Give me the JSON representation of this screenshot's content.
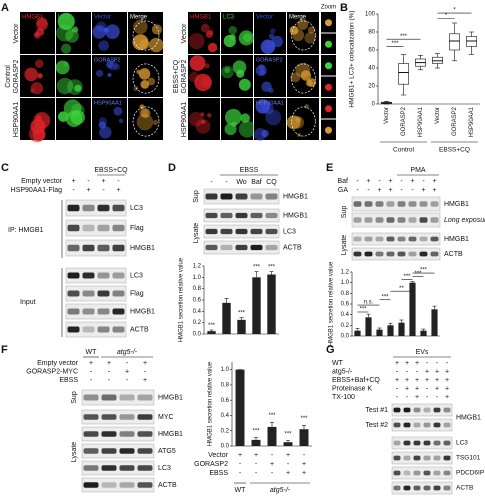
{
  "panel_a": {
    "label": "A",
    "control": {
      "group": "Control",
      "row_labels": [
        "Vector",
        "GORASP2",
        "HSP90AA1"
      ],
      "columns": [
        "HMGB1",
        "LC3",
        "Vector",
        "Merge"
      ],
      "channels": [
        "GORASP2",
        "HSP90AA1"
      ]
    },
    "ebss": {
      "group": "EBSS+CQ",
      "row_labels": [
        "Vector",
        "GORASP2",
        "HSP90AA1"
      ],
      "columns": [
        "HMGB1",
        "LC3",
        "Vector",
        "Merge"
      ],
      "channels": [
        "GORASP2",
        "HSP90AA1"
      ],
      "zoom": "Zoom"
    }
  },
  "panel_b": {
    "label": "B",
    "chart_data": {
      "type": "box",
      "y_label": "HMGB1+ LC3+ colocalization (%)",
      "ylim": [
        0,
        100
      ],
      "yticks": [
        0,
        20,
        40,
        60,
        80,
        100
      ],
      "categories": [
        "Vector",
        "GORASP2",
        "HSP90AA1",
        "Vector",
        "GORASP2",
        "HSP90AA1"
      ],
      "groups": [
        "Control",
        "EBSS+CQ"
      ],
      "boxes": [
        {
          "min": 0,
          "q1": 0.5,
          "median": 1,
          "q3": 2,
          "max": 3
        },
        {
          "min": 10,
          "q1": 22,
          "median": 35,
          "q3": 45,
          "max": 55
        },
        {
          "min": 38,
          "q1": 42,
          "median": 46,
          "q3": 50,
          "max": 54
        },
        {
          "min": 40,
          "q1": 45,
          "median": 48,
          "q3": 52,
          "max": 56
        },
        {
          "min": 48,
          "q1": 60,
          "median": 70,
          "q3": 78,
          "max": 90
        },
        {
          "min": 55,
          "q1": 64,
          "median": 70,
          "q3": 75,
          "max": 80
        }
      ],
      "color": "#ffffff",
      "annotations": [
        "***",
        "***",
        "*",
        "*"
      ]
    }
  },
  "panel_c": {
    "label": "C",
    "treatment": "EBSS+CQ",
    "conditions": [
      {
        "label": "Empty vector",
        "signs": [
          "+",
          "-",
          "+",
          "-"
        ]
      },
      {
        "label": "HSP90AA1-Flag",
        "signs": [
          "-",
          "+",
          "-",
          "+"
        ]
      }
    ],
    "ip": "IP: HMGB1",
    "ip_blots": [
      "LC3",
      "Flag",
      "HMGB1"
    ],
    "input": "Input",
    "input_blots": [
      "LC3",
      "Flag",
      "HMGB1",
      "ACTB"
    ]
  },
  "panel_d": {
    "label": "D",
    "treatment": "EBSS",
    "lanes": [
      "-",
      "-",
      "Wo",
      "Baf",
      "CQ"
    ],
    "sup": "Sup",
    "sup_blots": [
      "HMGB1"
    ],
    "lysate": "Lysate",
    "lysate_blots": [
      "HMGB1",
      "LC3",
      "ACTB"
    ],
    "chart_data": {
      "type": "bar",
      "y_label": "HMGB1 secretion relative value",
      "values": [
        0.05,
        0.55,
        0.25,
        1.0,
        1.05
      ],
      "errors": [
        0.02,
        0.08,
        0.04,
        0.1,
        0.05
      ],
      "color": "#222222",
      "ylim": [
        0,
        1.2
      ],
      "yticks": [
        {
          "value": 0,
          "label": "0.0"
        },
        {
          "value": 0.2,
          "label": "0.2"
        },
        {
          "value": 0.4,
          "label": "0.4"
        },
        {
          "value": 0.6,
          "label": "0.6"
        },
        {
          "value": 0.8,
          "label": "0.8"
        },
        {
          "value": 1.0,
          "label": "1.0"
        },
        {
          "value": 1.2,
          "label": "1.2"
        }
      ],
      "annotations": [
        "***",
        "***",
        "***",
        "***"
      ]
    }
  },
  "panel_e": {
    "label": "E",
    "treatment": "PMA",
    "conditions": [
      {
        "label": "Baf",
        "signs": [
          "-",
          "+",
          "-",
          "+",
          "-",
          "+",
          "-",
          "+"
        ]
      },
      {
        "label": "GA",
        "signs": [
          "-",
          "-",
          "+",
          "+",
          "-",
          "-",
          "+",
          "+"
        ]
      }
    ],
    "sup": "Sup",
    "sup_blots": [
      "HMGB1",
      "Long exposure"
    ],
    "lysate": "Lysate",
    "lysate_blots": [
      "HMGB1",
      "ACTB"
    ],
    "chart_data": {
      "type": "bar",
      "y_label": "HMGB1 secretion relative value",
      "values": [
        0.1,
        0.35,
        0.12,
        0.2,
        0.25,
        1.0,
        0.1,
        0.5
      ],
      "errors": [
        0.04,
        0.06,
        0.03,
        0.04,
        0.05,
        0.02,
        0.03,
        0.06
      ],
      "color": "#222222",
      "ylim": [
        0,
        1.2
      ],
      "yticks": [
        {
          "value": 0,
          "label": "0.0"
        },
        {
          "value": 0.2,
          "label": "0.2"
        },
        {
          "value": 0.4,
          "label": "0.4"
        },
        {
          "value": 0.6,
          "label": "0.6"
        },
        {
          "value": 0.8,
          "label": "0.8"
        },
        {
          "value": 1.0,
          "label": "1.0"
        },
        {
          "value": 1.2,
          "label": "1.2"
        }
      ],
      "annotations": [
        "***",
        "n.s.",
        "***",
        "**",
        "***",
        "***",
        "***"
      ]
    }
  },
  "panel_f": {
    "label": "F",
    "genotypes": [
      "WT",
      "atg5-/-"
    ],
    "conditions": [
      {
        "label": "Empty vector",
        "signs": [
          "+",
          "+",
          "-",
          "+"
        ]
      },
      {
        "label": "GORASP2-MYC",
        "signs": [
          "-",
          "-",
          "+",
          "-"
        ]
      },
      {
        "label": "EBSS",
        "signs": [
          "-",
          "-",
          "-",
          "+"
        ]
      }
    ],
    "sup": "Sup",
    "sup_blots": [
      "HMGB1"
    ],
    "lysate": "Lysate",
    "lysate_blots": [
      "MYC",
      "HMGB1",
      "ATG5",
      "LC3",
      "ACTB"
    ],
    "chart_data": {
      "type": "bar",
      "y_label": "HMGB1 secretion relative value",
      "values": [
        1.0,
        0.08,
        0.25,
        0.05,
        0.22
      ],
      "errors": [
        0,
        0.03,
        0.06,
        0.02,
        0.05
      ],
      "color": "#222222",
      "ylim": [
        0,
        1.1
      ],
      "yticks": [
        {
          "value": 0,
          "label": "0.0"
        },
        {
          "value": 0.2,
          "label": "0.2"
        },
        {
          "value": 0.4,
          "label": "0.4"
        },
        {
          "value": 0.6,
          "label": "0.6"
        },
        {
          "value": 0.8,
          "label": "0.8"
        },
        {
          "value": 1.0,
          "label": "1.0"
        }
      ],
      "annotations": [
        "***",
        "***",
        "***",
        "***"
      ],
      "table": [
        {
          "label": "Vector",
          "signs": [
            "+",
            "+",
            "-",
            "+",
            "-"
          ]
        },
        {
          "label": "GORASP2",
          "signs": [
            "-",
            "-",
            "+",
            "-",
            "+"
          ]
        },
        {
          "label": "EBSS",
          "signs": [
            "-",
            "-",
            "-",
            "+",
            "+"
          ]
        }
      ],
      "groups": [
        "WT",
        "atg5-/-"
      ]
    }
  },
  "panel_g": {
    "label": "G",
    "header": "EVs",
    "conditions": [
      {
        "label": "WT",
        "signs": [
          "+",
          "+",
          "+",
          "-",
          "-",
          "-"
        ]
      },
      {
        "label": "atg5-/-",
        "signs": [
          "-",
          "-",
          "-",
          "+",
          "+",
          "+"
        ]
      },
      {
        "label": "EBSS+Baf+CQ",
        "signs": [
          "+",
          "+",
          "+",
          "+",
          "+",
          "+"
        ]
      },
      {
        "label": "Proteinase K",
        "signs": [
          "-",
          "+",
          "+",
          "-",
          "+",
          "+"
        ]
      },
      {
        "label": "TX-100",
        "signs": [
          "-",
          "-",
          "+",
          "-",
          "-",
          "+"
        ]
      }
    ],
    "tests": [
      "Test #1",
      "Test #2"
    ],
    "blots": [
      "HMGB1",
      "LC3",
      "TSG101",
      "PDCD6IP",
      "ACTB"
    ]
  }
}
